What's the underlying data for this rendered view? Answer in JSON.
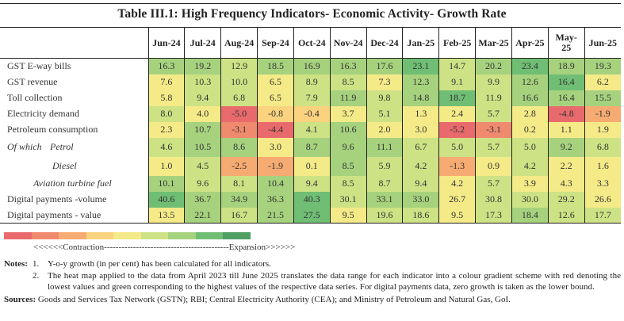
{
  "title": "Table III.1: High Frequency Indicators- Economic Activity- Growth Rate",
  "columns": [
    "Jun-24",
    "Jul-24",
    "Aug-24",
    "Sep-24",
    "Oct-24",
    "Nov-24",
    "Dec-24",
    "Jan-25",
    "Feb-25",
    "Mar-25",
    "Apr-25",
    "May-25",
    "Jun-25"
  ],
  "heat_colors": [
    "#e96a6c",
    "#f08a6e",
    "#f6ab72",
    "#fbd27e",
    "#f4ea88",
    "#cde285",
    "#a6d27e",
    "#6fbe74",
    "#4f9f63"
  ],
  "rows": [
    {
      "label": "GST E-way bills",
      "values": [
        "16.3",
        "19.2",
        "12.9",
        "18.5",
        "16.9",
        "16.3",
        "17.6",
        "23.1",
        "14.7",
        "20.2",
        "23.4",
        "18.9",
        "19.3"
      ],
      "heat": [
        6,
        6,
        5,
        6,
        6,
        6,
        6,
        7,
        5,
        6,
        7,
        6,
        6
      ]
    },
    {
      "label": "GST revenue",
      "values": [
        "7.6",
        "10.3",
        "10.0",
        "6.5",
        "8.9",
        "8.5",
        "7.3",
        "12.3",
        "9.1",
        "9.9",
        "12.6",
        "16.4",
        "6.2"
      ],
      "heat": [
        4,
        5,
        5,
        4,
        5,
        5,
        4,
        6,
        5,
        5,
        6,
        7,
        4
      ]
    },
    {
      "label": "Toll collection",
      "values": [
        "5.8",
        "9.4",
        "6.8",
        "6.5",
        "7.9",
        "11.9",
        "9.8",
        "14.8",
        "18.7",
        "11.9",
        "16.6",
        "16.4",
        "15.5"
      ],
      "heat": [
        4,
        5,
        5,
        4,
        5,
        6,
        5,
        6,
        7,
        5,
        6,
        6,
        6
      ]
    },
    {
      "label": "Electricity demand",
      "values": [
        "8.0",
        "4.0",
        "-5.0",
        "-0.8",
        "-0.4",
        "3.7",
        "5.1",
        "1.3",
        "2.4",
        "5.7",
        "2.8",
        "-4.8",
        "-1.9"
      ],
      "heat": [
        5,
        4,
        0,
        3,
        3,
        4,
        5,
        4,
        4,
        5,
        4,
        0,
        2
      ]
    },
    {
      "label": "Petroleum consumption",
      "values": [
        "2.3",
        "10.7",
        "-3.1",
        "-4.4",
        "4.1",
        "10.6",
        "2.0",
        "3.0",
        "-5.2",
        "-3.1",
        "0.2",
        "1.1",
        "1.9"
      ],
      "heat": [
        4,
        6,
        1,
        0,
        5,
        6,
        4,
        4,
        0,
        1,
        4,
        4,
        4
      ]
    },
    {
      "label": "Petrol",
      "prefix": "Of which",
      "values": [
        "4.6",
        "10.5",
        "8.6",
        "3.0",
        "8.7",
        "9.6",
        "11.1",
        "6.7",
        "5.0",
        "5.7",
        "5.0",
        "9.2",
        "6.8"
      ],
      "heat": [
        5,
        6,
        6,
        4,
        6,
        6,
        6,
        5,
        5,
        5,
        5,
        6,
        5
      ]
    },
    {
      "label": "Diesel",
      "values": [
        "1.0",
        "4.5",
        "-2.5",
        "-1.9",
        "0.1",
        "8.5",
        "5.9",
        "4.2",
        "-1.3",
        "0.9",
        "4.2",
        "2.2",
        "1.6"
      ],
      "heat": [
        4,
        5,
        2,
        2,
        4,
        6,
        5,
        5,
        2,
        4,
        5,
        4,
        4
      ]
    },
    {
      "label": "Aviation turbine fuel",
      "values": [
        "10.1",
        "9.6",
        "8.1",
        "10.4",
        "9.4",
        "8.5",
        "8.7",
        "9.4",
        "4.2",
        "5.7",
        "3.9",
        "4.3",
        "3.3"
      ],
      "heat": [
        6,
        5,
        5,
        6,
        5,
        5,
        5,
        5,
        4,
        5,
        4,
        4,
        4
      ]
    },
    {
      "label": "Digital payments -volume",
      "values": [
        "40.6",
        "36.7",
        "34.9",
        "36.3",
        "40.3",
        "30.1",
        "33.1",
        "33.0",
        "26.7",
        "30.8",
        "30.0",
        "29.2",
        "26.6"
      ],
      "heat": [
        7,
        6,
        6,
        6,
        7,
        5,
        6,
        6,
        4,
        5,
        5,
        5,
        4
      ]
    },
    {
      "label": "Digital payments - value",
      "values": [
        "13.5",
        "22.1",
        "16.7",
        "21.5",
        "27.5",
        "9.5",
        "19.6",
        "18.6",
        "9.5",
        "17.3",
        "18.4",
        "12.6",
        "17.7"
      ],
      "heat": [
        4,
        6,
        5,
        6,
        7,
        4,
        5,
        5,
        4,
        5,
        6,
        5,
        5
      ]
    }
  ],
  "legend": "<<<<<<Contraction-------------------------------------------Expansion>>>>>>",
  "notes": {
    "label": "Notes:",
    "items": [
      {
        "num": "1.",
        "text": "Y-o-y growth (in per cent) has been calculated for all indicators."
      },
      {
        "num": "2.",
        "text": "The heat map applied to the data from April 2023 till June 2025 translates the data range for each indicator into a colour gradient scheme with red denoting the lowest values and green corresponding to the highest values of the respective data series. For digital payments data, zero growth is taken as the lower bound."
      }
    ]
  },
  "sources": {
    "label": "Sources:",
    "text": "Goods and Services Tax Network (GSTN); RBI; Central Electricity Authority (CEA); and Ministry of Petroleum and Natural Gas, GoI."
  }
}
